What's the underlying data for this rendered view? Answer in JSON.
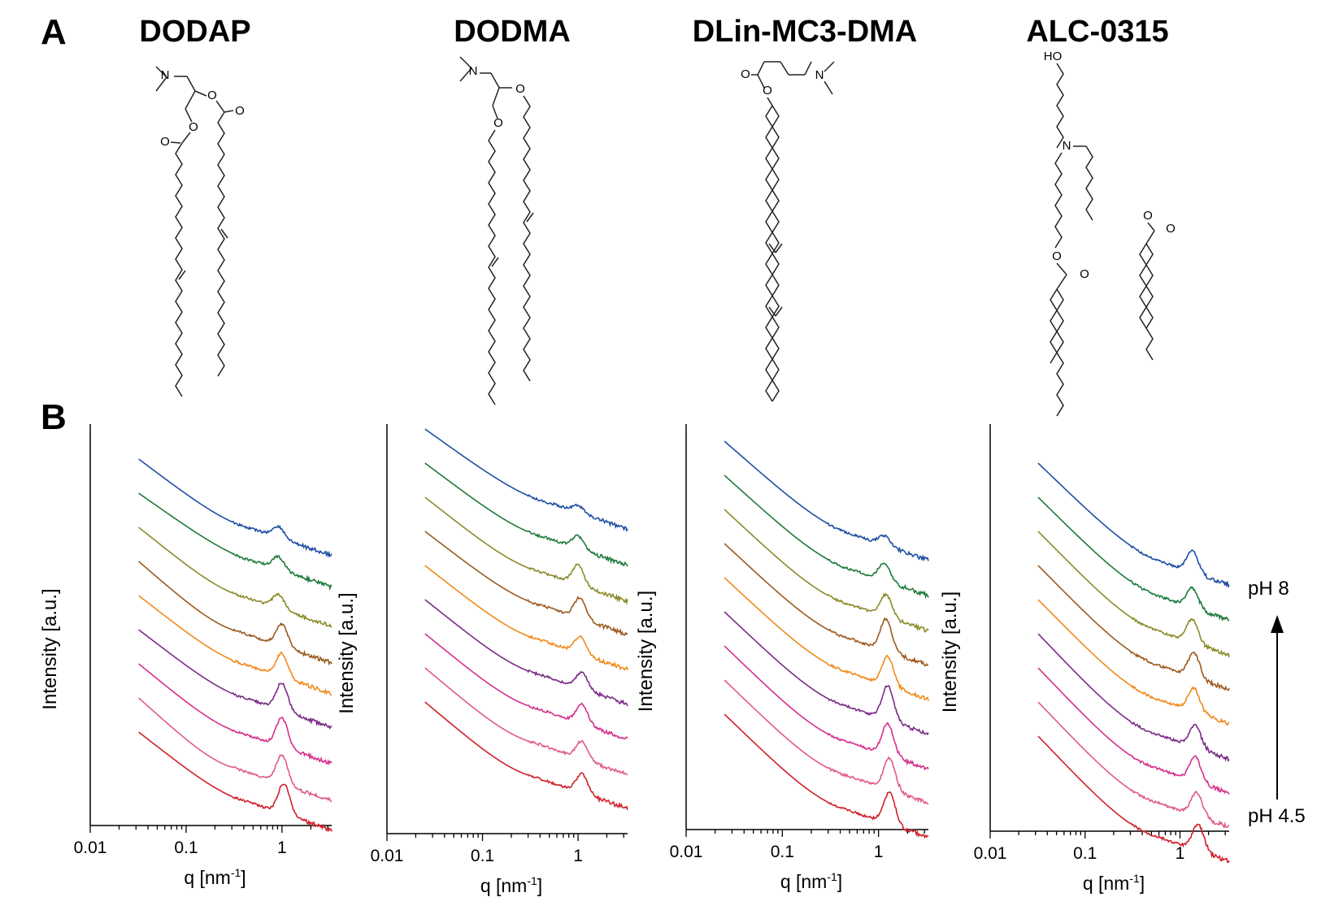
{
  "figure": {
    "panel_a_label": "A",
    "panel_b_label": "B",
    "lipids": [
      "DODAP",
      "DODMA",
      "DLin-MC3-DMA",
      "ALC-0315"
    ],
    "atom_labels": {
      "N": "N",
      "O": "O",
      "HO": "HO"
    },
    "ph_top_label": "pH 8",
    "ph_bottom_label": "pH 4.5"
  },
  "chart_data": [
    {
      "type": "line",
      "panel": "DODAP",
      "xlabel": "q [nm",
      "xlabel_sup": "-1",
      "xlabel_end": "]",
      "ylabel": "Intensity [a.u.]",
      "x_scale": "log",
      "xlim": [
        0.01,
        3.3
      ],
      "x_ticks": [
        "0.01",
        "0.1",
        "1"
      ],
      "q_range": [
        0.032,
        3.3
      ],
      "curve_shape": {
        "slope": 0.7,
        "shoulder_q": [
          0.32,
          0.3
        ],
        "dip_q": [
          0.5,
          0.6,
          0.42,
          0.35,
          0.45,
          0.47,
          0.4,
          0.32,
          0.45
        ],
        "peak_q": [
          0.92,
          0.92,
          0.92,
          1.0,
          1.0,
          1.0,
          1.0,
          1.0,
          1.05
        ],
        "peak_height": [
          0.08,
          0.09,
          0.1,
          0.16,
          0.17,
          0.2,
          0.21,
          0.21,
          0.22
        ]
      },
      "series": [
        {
          "color": "#1f4fa3"
        },
        {
          "color": "#1e7a3c"
        },
        {
          "color": "#8c8a2b"
        },
        {
          "color": "#9b5a1f"
        },
        {
          "color": "#f08a1c"
        },
        {
          "color": "#7b2c87"
        },
        {
          "color": "#d62f8c"
        },
        {
          "color": "#e05a8a"
        },
        {
          "color": "#d0202b"
        }
      ]
    },
    {
      "type": "line",
      "panel": "DODMA",
      "xlabel": "q [nm",
      "xlabel_sup": "-1",
      "xlabel_end": "]",
      "ylabel": "Intensity [a.u.]",
      "x_scale": "log",
      "xlim": [
        0.01,
        3.3
      ],
      "x_ticks": [
        "0.01",
        "0.1",
        "1"
      ],
      "q_range": [
        0.025,
        3.3
      ],
      "curve_shape": {
        "slope": 0.75,
        "shoulder_q": [
          0.35,
          0.3
        ],
        "dip_q": [
          0.55,
          0.48,
          0.42,
          0.45,
          0.42,
          0.4,
          0.38,
          0.35,
          0.35
        ],
        "peak_q": [
          1.0,
          1.0,
          1.0,
          1.05,
          1.05,
          1.1,
          1.1,
          1.1,
          1.1
        ],
        "peak_height": [
          0.05,
          0.09,
          0.14,
          0.15,
          0.12,
          0.12,
          0.14,
          0.13,
          0.14
        ]
      },
      "series": [
        {
          "color": "#1f4fa3"
        },
        {
          "color": "#1e7a3c"
        },
        {
          "color": "#8c8a2b"
        },
        {
          "color": "#9b5a1f"
        },
        {
          "color": "#f08a1c"
        },
        {
          "color": "#7b2c87"
        },
        {
          "color": "#d62f8c"
        },
        {
          "color": "#e05a8a"
        },
        {
          "color": "#d0202b"
        }
      ]
    },
    {
      "type": "line",
      "panel": "DLin-MC3-DMA",
      "xlabel": "q [nm",
      "xlabel_sup": "-1",
      "xlabel_end": "]",
      "ylabel": "Intensity [a.u.]",
      "x_scale": "log",
      "xlim": [
        0.01,
        3.3
      ],
      "x_ticks": [
        "0.01",
        "0.1",
        "1"
      ],
      "q_range": [
        0.025,
        3.3
      ],
      "curve_shape": {
        "slope": 0.95,
        "shoulder_q": [
          0.28,
          0.25
        ],
        "dip_q": [
          0.6,
          0.55,
          0.5,
          0.5,
          0.5,
          0.48,
          0.45,
          0.45,
          0.45
        ],
        "peak_q": [
          1.15,
          1.15,
          1.2,
          1.2,
          1.25,
          1.25,
          1.25,
          1.3,
          1.3
        ],
        "peak_height": [
          0.07,
          0.13,
          0.16,
          0.23,
          0.21,
          0.25,
          0.23,
          0.23,
          0.23
        ]
      },
      "series": [
        {
          "color": "#1f4fa3"
        },
        {
          "color": "#1e7a3c"
        },
        {
          "color": "#8c8a2b"
        },
        {
          "color": "#9b5a1f"
        },
        {
          "color": "#f08a1c"
        },
        {
          "color": "#7b2c87"
        },
        {
          "color": "#d62f8c"
        },
        {
          "color": "#e05a8a"
        },
        {
          "color": "#d0202b"
        }
      ]
    },
    {
      "type": "line",
      "panel": "ALC-0315",
      "xlabel": "q [nm",
      "xlabel_sup": "-1",
      "xlabel_end": "]",
      "ylabel": "Intensity [a.u.]",
      "x_scale": "log",
      "xlim": [
        0.01,
        3.3
      ],
      "x_ticks": [
        "0.01",
        "0.1",
        "1"
      ],
      "q_range": [
        0.032,
        3.3
      ],
      "curve_shape": {
        "slope": 1.0,
        "shoulder_q": [
          0.3,
          0.25
        ],
        "dip_q": [
          0.7,
          0.65,
          0.6,
          0.6,
          0.6,
          0.55,
          0.55,
          0.55,
          0.55
        ],
        "peak_q": [
          1.35,
          1.35,
          1.35,
          1.4,
          1.4,
          1.45,
          1.45,
          1.5,
          1.55
        ],
        "peak_height": [
          0.16,
          0.14,
          0.17,
          0.18,
          0.17,
          0.16,
          0.18,
          0.17,
          0.19
        ]
      },
      "series": [
        {
          "color": "#1f4fa3"
        },
        {
          "color": "#1e7a3c"
        },
        {
          "color": "#8c8a2b"
        },
        {
          "color": "#9b5a1f"
        },
        {
          "color": "#f08a1c"
        },
        {
          "color": "#7b2c87"
        },
        {
          "color": "#d62f8c"
        },
        {
          "color": "#e05a8a"
        },
        {
          "color": "#d0202b"
        }
      ]
    }
  ]
}
